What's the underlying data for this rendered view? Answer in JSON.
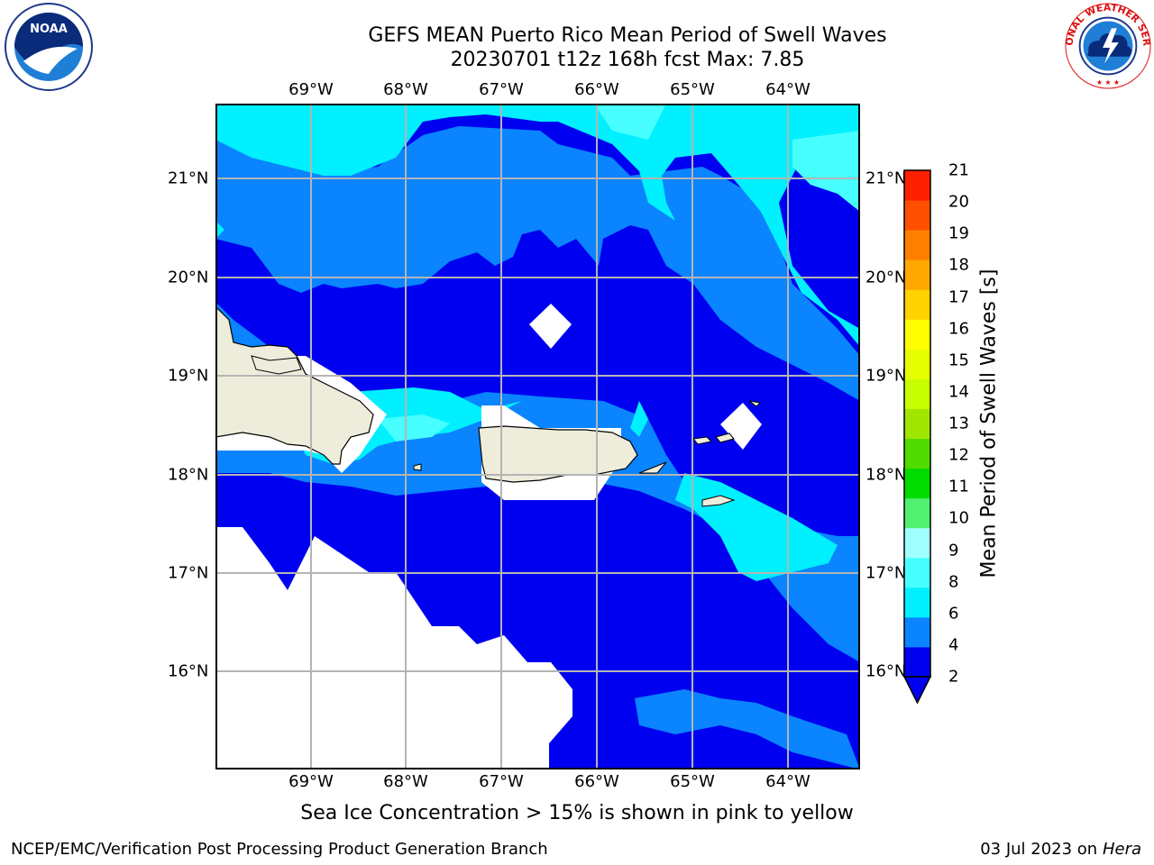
{
  "title": {
    "line1": "GEFS MEAN Puerto Rico Mean Period of Swell Waves",
    "line2": "20230701 t12z 168h fcst   Max: 7.85"
  },
  "longitudes": [
    "69°W",
    "68°W",
    "67°W",
    "66°W",
    "65°W",
    "64°W"
  ],
  "latitudes": [
    "21°N",
    "20°N",
    "19°N",
    "18°N",
    "17°N",
    "16°N"
  ],
  "colorbar": {
    "label": "Mean Period of Swell Waves [s]",
    "ticks": [
      "21",
      "20",
      "19",
      "18",
      "17",
      "16",
      "15",
      "14",
      "13",
      "12",
      "11",
      "10",
      "9",
      "8",
      "6",
      "4",
      "2"
    ],
    "colors": [
      "#0000f0",
      "#0a84ff",
      "#00f0ff",
      "#48ffff",
      "#a0ffff",
      "#50f070",
      "#00dc00",
      "#50dc00",
      "#a0e600",
      "#c8ff00",
      "#e6ff00",
      "#ffff00",
      "#ffd200",
      "#ffa800",
      "#ff8000",
      "#ff5000",
      "#ff2000",
      "#f50000"
    ]
  },
  "legend_colors": {
    "level_2_4": "#0000f0",
    "level_4_6": "#0a84ff",
    "level_6_8": "#00f0ff",
    "level_8": "#48ffff",
    "land": "#eeeddc",
    "grid": "#b4b4b4"
  },
  "footer": {
    "note": "Sea Ice Concentration > 15% is shown in pink to yellow",
    "credit_left": "NCEP/EMC/Verification Post Processing Product Generation Branch",
    "date": "03 Jul 2023 on ",
    "host": "Hera"
  },
  "logos": {
    "noaa_text": "NOAA",
    "nws_text": "NATIONAL WEATHER SERVICE"
  },
  "icons": {
    "noaa": "noaa-logo-icon",
    "nws": "nws-logo-icon"
  }
}
